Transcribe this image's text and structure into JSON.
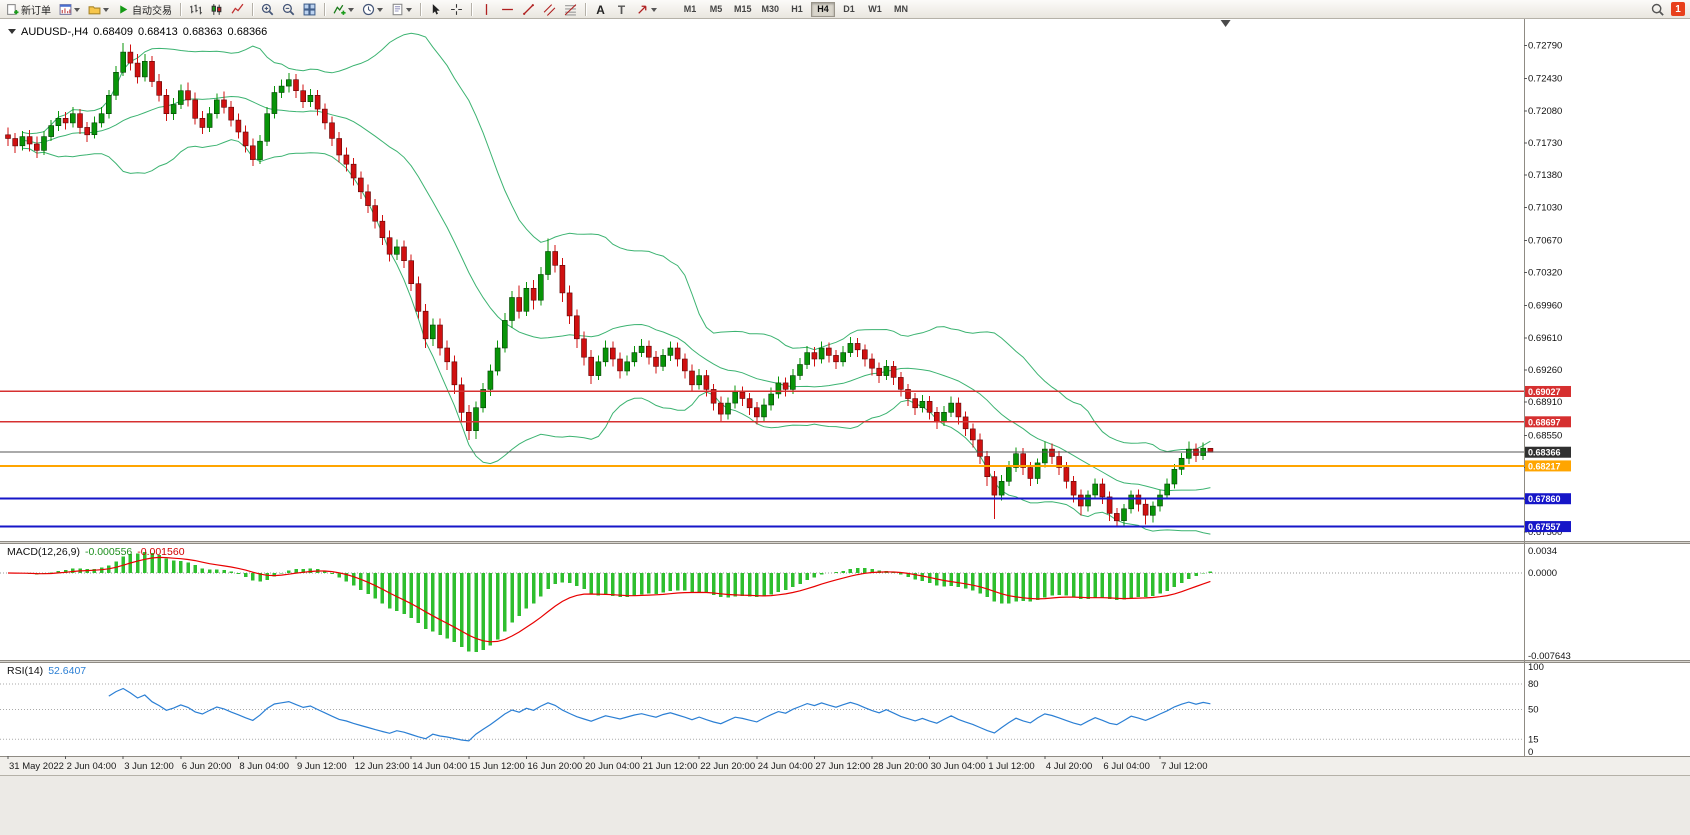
{
  "toolbar": {
    "groups": [
      {
        "items": [
          {
            "name": "new-order",
            "icon": "new-order",
            "label": "新订单"
          },
          {
            "name": "new-chart",
            "icon": "chart-window",
            "dropdown": true
          },
          {
            "name": "profiles",
            "icon": "profiles",
            "dropdown": true
          },
          {
            "name": "auto-trading",
            "icon": "play",
            "label": "自动交易"
          }
        ]
      },
      {
        "items": [
          {
            "name": "bars-mode",
            "icon": "bars"
          },
          {
            "name": "candles-mode",
            "icon": "candles"
          },
          {
            "name": "line-mode",
            "icon": "line-chart"
          }
        ]
      },
      {
        "items": [
          {
            "name": "zoom-in",
            "icon": "zoom-in"
          },
          {
            "name": "zoom-out",
            "icon": "zoom-out"
          },
          {
            "name": "tile-windows",
            "icon": "tile"
          }
        ]
      },
      {
        "items": [
          {
            "name": "indicators",
            "icon": "indicators",
            "dropdown": true
          },
          {
            "name": "periods",
            "icon": "clock",
            "dropdown": true
          },
          {
            "name": "templates",
            "icon": "template",
            "dropdown": true
          }
        ]
      },
      {
        "items": [
          {
            "name": "cursor",
            "icon": "cursor"
          },
          {
            "name": "crosshair",
            "icon": "crosshair"
          }
        ]
      },
      {
        "items": [
          {
            "name": "vertical-line",
            "icon": "vline"
          },
          {
            "name": "horizontal-line",
            "icon": "hline"
          },
          {
            "name": "trendline",
            "icon": "trendline"
          },
          {
            "name": "equidistant-channel",
            "icon": "channel"
          },
          {
            "name": "fibonacci",
            "icon": "fibo"
          }
        ]
      },
      {
        "items": [
          {
            "name": "text",
            "icon": "text-a"
          },
          {
            "name": "text-label",
            "icon": "text-t"
          },
          {
            "name": "arrows",
            "icon": "arrow",
            "dropdown": true
          }
        ]
      }
    ],
    "timeframes": [
      "M1",
      "M5",
      "M15",
      "M30",
      "H1",
      "H4",
      "D1",
      "W1",
      "MN"
    ],
    "active_timeframe": "H4",
    "notification_count": "1"
  },
  "chart_data": {
    "type": "candlestick",
    "symbol": "AUDUSD",
    "timeframe": "H4",
    "title": {
      "symbol": "AUDUSD-,H4",
      "open": "0.68409",
      "high": "0.68413",
      "low": "0.68363",
      "close": "0.68366"
    },
    "price_range": [
      0.674,
      0.7308
    ],
    "price_axis": {
      "ticks": [
        "0.72790",
        "0.72430",
        "0.72080",
        "0.71730",
        "0.71380",
        "0.71030",
        "0.70670",
        "0.70320",
        "0.69960",
        "0.69610",
        "0.69260",
        "0.68910",
        "0.68550",
        "0.68200",
        "0.67850",
        "0.67500"
      ]
    },
    "time_axis": {
      "labels": [
        "31 May 2022",
        "2 Jun 04:00",
        "3 Jun 12:00",
        "6 Jun 20:00",
        "8 Jun 04:00",
        "9 Jun 12:00",
        "12 Jun 23:00",
        "14 Jun 04:00",
        "15 Jun 12:00",
        "16 Jun 20:00",
        "20 Jun 04:00",
        "21 Jun 12:00",
        "22 Jun 20:00",
        "24 Jun 04:00",
        "27 Jun 12:00",
        "28 Jun 20:00",
        "30 Jun 04:00",
        "1 Jul 12:00",
        "4 Jul 20:00",
        "6 Jul 04:00",
        "7 Jul 12:00"
      ]
    },
    "candle_colors": {
      "bull": "#089408",
      "bear": "#d01010"
    },
    "overlays": {
      "bollinger": {
        "period": 20,
        "deviation": 2,
        "color": "#3CB371"
      }
    },
    "hlines": [
      {
        "price": 0.69027,
        "label": "0.69027",
        "color": "#d63030",
        "width": 1.5
      },
      {
        "price": 0.68697,
        "label": "0.68697",
        "color": "#d63030",
        "width": 1.5
      },
      {
        "price": 0.68366,
        "label": "0.68366",
        "color": "#555555",
        "badge": "#303030",
        "width": 1
      },
      {
        "price": 0.68217,
        "label": "0.68217",
        "color": "#ffa500",
        "width": 2
      },
      {
        "price": 0.6786,
        "label": "0.67860",
        "color": "#1616c8",
        "width": 2
      },
      {
        "price": 0.67557,
        "label": "0.67557",
        "color": "#1616c8",
        "width": 2
      }
    ],
    "indicators": {
      "macd": {
        "name": "MACD(12,26,9)",
        "value": "-0.000556",
        "signal_value": "-0.001560",
        "fast": 12,
        "slow": 26,
        "signal": 9,
        "scale_top": "0.0034",
        "scale_zero": "0.0000",
        "scale_bottom": "-0.007643",
        "hist_color": "#2EBE2E",
        "signal_color": "#e80000"
      },
      "rsi": {
        "name": "RSI(14)",
        "value": "52.6407",
        "period": 14,
        "levels": [
          80,
          50,
          15
        ],
        "scale_labels": [
          "100",
          "80",
          "50",
          "15",
          "0"
        ],
        "color": "#2b7fd4"
      }
    },
    "candles": [
      [
        0.7182,
        0.719,
        0.717,
        0.7178
      ],
      [
        0.7178,
        0.7184,
        0.7162,
        0.717
      ],
      [
        0.717,
        0.7186,
        0.7165,
        0.718
      ],
      [
        0.718,
        0.7187,
        0.7164,
        0.7172
      ],
      [
        0.7172,
        0.718,
        0.7157,
        0.7165
      ],
      [
        0.7165,
        0.7186,
        0.716,
        0.718
      ],
      [
        0.718,
        0.7198,
        0.7175,
        0.7192
      ],
      [
        0.7192,
        0.7208,
        0.7186,
        0.72
      ],
      [
        0.72,
        0.7207,
        0.7188,
        0.7195
      ],
      [
        0.7195,
        0.7212,
        0.719,
        0.7205
      ],
      [
        0.7205,
        0.721,
        0.7183,
        0.719
      ],
      [
        0.719,
        0.7196,
        0.7174,
        0.7182
      ],
      [
        0.7182,
        0.7202,
        0.7178,
        0.7195
      ],
      [
        0.7195,
        0.7212,
        0.719,
        0.7205
      ],
      [
        0.7205,
        0.7231,
        0.72,
        0.7225
      ],
      [
        0.7225,
        0.7257,
        0.722,
        0.725
      ],
      [
        0.725,
        0.7282,
        0.7246,
        0.7272
      ],
      [
        0.7272,
        0.728,
        0.7252,
        0.726
      ],
      [
        0.726,
        0.727,
        0.7238,
        0.7245
      ],
      [
        0.7245,
        0.727,
        0.724,
        0.7262
      ],
      [
        0.7262,
        0.7268,
        0.7234,
        0.724
      ],
      [
        0.724,
        0.7248,
        0.7218,
        0.7225
      ],
      [
        0.7225,
        0.7232,
        0.7197,
        0.7205
      ],
      [
        0.7205,
        0.7222,
        0.7198,
        0.7215
      ],
      [
        0.7215,
        0.7237,
        0.721,
        0.723
      ],
      [
        0.723,
        0.7239,
        0.7213,
        0.722
      ],
      [
        0.722,
        0.7228,
        0.7193,
        0.72
      ],
      [
        0.72,
        0.7208,
        0.7183,
        0.719
      ],
      [
        0.719,
        0.7212,
        0.7185,
        0.7205
      ],
      [
        0.7205,
        0.7227,
        0.72,
        0.722
      ],
      [
        0.722,
        0.7229,
        0.7205,
        0.7212
      ],
      [
        0.7212,
        0.7219,
        0.7191,
        0.7198
      ],
      [
        0.7198,
        0.7205,
        0.7178,
        0.7185
      ],
      [
        0.7185,
        0.7192,
        0.7163,
        0.717
      ],
      [
        0.717,
        0.7178,
        0.7148,
        0.7155
      ],
      [
        0.7155,
        0.7182,
        0.715,
        0.7175
      ],
      [
        0.7175,
        0.7212,
        0.717,
        0.7205
      ],
      [
        0.7205,
        0.7235,
        0.72,
        0.7228
      ],
      [
        0.7228,
        0.7242,
        0.7222,
        0.7235
      ],
      [
        0.7235,
        0.7249,
        0.7228,
        0.7242
      ],
      [
        0.7242,
        0.7248,
        0.7222,
        0.723
      ],
      [
        0.723,
        0.7237,
        0.7211,
        0.7218
      ],
      [
        0.7218,
        0.7232,
        0.7212,
        0.7225
      ],
      [
        0.7225,
        0.7231,
        0.7203,
        0.721
      ],
      [
        0.721,
        0.7216,
        0.7188,
        0.7195
      ],
      [
        0.7195,
        0.7202,
        0.717,
        0.7178
      ],
      [
        0.7178,
        0.7185,
        0.7152,
        0.716
      ],
      [
        0.716,
        0.7168,
        0.7142,
        0.715
      ],
      [
        0.715,
        0.7157,
        0.7127,
        0.7135
      ],
      [
        0.7135,
        0.7142,
        0.7112,
        0.712
      ],
      [
        0.712,
        0.7128,
        0.7097,
        0.7105
      ],
      [
        0.7105,
        0.7112,
        0.708,
        0.7088
      ],
      [
        0.7088,
        0.7095,
        0.7062,
        0.707
      ],
      [
        0.707,
        0.7078,
        0.7044,
        0.7052
      ],
      [
        0.7052,
        0.7068,
        0.7046,
        0.706
      ],
      [
        0.706,
        0.7067,
        0.7037,
        0.7045
      ],
      [
        0.7045,
        0.7052,
        0.7012,
        0.702
      ],
      [
        0.702,
        0.7028,
        0.6982,
        0.699
      ],
      [
        0.699,
        0.6998,
        0.695,
        0.696
      ],
      [
        0.696,
        0.6982,
        0.6952,
        0.6975
      ],
      [
        0.6975,
        0.6982,
        0.6942,
        0.695
      ],
      [
        0.695,
        0.6958,
        0.6926,
        0.6935
      ],
      [
        0.6935,
        0.6942,
        0.69,
        0.691
      ],
      [
        0.691,
        0.6918,
        0.687,
        0.688
      ],
      [
        0.688,
        0.6888,
        0.685,
        0.686
      ],
      [
        0.686,
        0.6892,
        0.6851,
        0.6885
      ],
      [
        0.6885,
        0.6912,
        0.688,
        0.6905
      ],
      [
        0.6905,
        0.6932,
        0.6898,
        0.6925
      ],
      [
        0.6925,
        0.6958,
        0.692,
        0.695
      ],
      [
        0.695,
        0.6988,
        0.6945,
        0.698
      ],
      [
        0.698,
        0.7012,
        0.6972,
        0.7005
      ],
      [
        0.7005,
        0.7018,
        0.6982,
        0.699
      ],
      [
        0.699,
        0.7022,
        0.6985,
        0.7015
      ],
      [
        0.7015,
        0.7024,
        0.6992,
        0.7002
      ],
      [
        0.7002,
        0.7038,
        0.6996,
        0.703
      ],
      [
        0.703,
        0.7069,
        0.7024,
        0.7055
      ],
      [
        0.7055,
        0.7062,
        0.7032,
        0.704
      ],
      [
        0.704,
        0.7048,
        0.7,
        0.701
      ],
      [
        0.701,
        0.7018,
        0.6976,
        0.6985
      ],
      [
        0.6985,
        0.6992,
        0.695,
        0.696
      ],
      [
        0.696,
        0.6968,
        0.6931,
        0.694
      ],
      [
        0.694,
        0.6948,
        0.6911,
        0.692
      ],
      [
        0.692,
        0.6942,
        0.6915,
        0.6935
      ],
      [
        0.6935,
        0.6958,
        0.693,
        0.695
      ],
      [
        0.695,
        0.6957,
        0.693,
        0.6938
      ],
      [
        0.6938,
        0.6945,
        0.6917,
        0.6925
      ],
      [
        0.6925,
        0.6942,
        0.692,
        0.6935
      ],
      [
        0.6935,
        0.6952,
        0.693,
        0.6945
      ],
      [
        0.6945,
        0.696,
        0.694,
        0.6952
      ],
      [
        0.6952,
        0.6958,
        0.6932,
        0.694
      ],
      [
        0.694,
        0.6947,
        0.6922,
        0.693
      ],
      [
        0.693,
        0.6949,
        0.6925,
        0.6942
      ],
      [
        0.6942,
        0.6957,
        0.6936,
        0.695
      ],
      [
        0.695,
        0.6956,
        0.693,
        0.6938
      ],
      [
        0.6938,
        0.6944,
        0.6917,
        0.6925
      ],
      [
        0.6925,
        0.6932,
        0.6902,
        0.691
      ],
      [
        0.691,
        0.6927,
        0.6905,
        0.692
      ],
      [
        0.692,
        0.6926,
        0.6897,
        0.6905
      ],
      [
        0.6905,
        0.6911,
        0.6882,
        0.689
      ],
      [
        0.689,
        0.6897,
        0.687,
        0.6878
      ],
      [
        0.6878,
        0.6896,
        0.6872,
        0.689
      ],
      [
        0.689,
        0.6909,
        0.6884,
        0.6902
      ],
      [
        0.6902,
        0.6908,
        0.6887,
        0.6895
      ],
      [
        0.6895,
        0.6901,
        0.6877,
        0.6885
      ],
      [
        0.6885,
        0.6891,
        0.6867,
        0.6875
      ],
      [
        0.6875,
        0.6895,
        0.687,
        0.6888
      ],
      [
        0.6888,
        0.6907,
        0.6882,
        0.69
      ],
      [
        0.69,
        0.6919,
        0.6895,
        0.6912
      ],
      [
        0.6912,
        0.6918,
        0.6897,
        0.6905
      ],
      [
        0.6905,
        0.6927,
        0.69,
        0.692
      ],
      [
        0.692,
        0.6939,
        0.6915,
        0.6932
      ],
      [
        0.6932,
        0.6952,
        0.6927,
        0.6945
      ],
      [
        0.6945,
        0.6951,
        0.693,
        0.6938
      ],
      [
        0.6938,
        0.6957,
        0.6933,
        0.695
      ],
      [
        0.695,
        0.6956,
        0.6934,
        0.6942
      ],
      [
        0.6942,
        0.6948,
        0.6927,
        0.6935
      ],
      [
        0.6935,
        0.6952,
        0.693,
        0.6945
      ],
      [
        0.6945,
        0.6962,
        0.694,
        0.6955
      ],
      [
        0.6955,
        0.6961,
        0.694,
        0.6948
      ],
      [
        0.6948,
        0.6954,
        0.693,
        0.6938
      ],
      [
        0.6938,
        0.6944,
        0.692,
        0.6928
      ],
      [
        0.6928,
        0.6934,
        0.6912,
        0.692
      ],
      [
        0.692,
        0.6937,
        0.6915,
        0.693
      ],
      [
        0.693,
        0.6936,
        0.691,
        0.6918
      ],
      [
        0.6918,
        0.6924,
        0.6897,
        0.6905
      ],
      [
        0.6905,
        0.6911,
        0.6887,
        0.6895
      ],
      [
        0.6895,
        0.6901,
        0.6877,
        0.6885
      ],
      [
        0.6885,
        0.6899,
        0.688,
        0.6892
      ],
      [
        0.6892,
        0.6898,
        0.6872,
        0.688
      ],
      [
        0.688,
        0.6886,
        0.6862,
        0.687
      ],
      [
        0.687,
        0.6887,
        0.6865,
        0.688
      ],
      [
        0.688,
        0.6897,
        0.6875,
        0.689
      ],
      [
        0.689,
        0.6896,
        0.6867,
        0.6875
      ],
      [
        0.6875,
        0.6881,
        0.6854,
        0.6862
      ],
      [
        0.6862,
        0.6868,
        0.6842,
        0.685
      ],
      [
        0.685,
        0.6857,
        0.6824,
        0.6832
      ],
      [
        0.6832,
        0.6838,
        0.68,
        0.681
      ],
      [
        0.681,
        0.6816,
        0.6764,
        0.679
      ],
      [
        0.679,
        0.6812,
        0.6784,
        0.6805
      ],
      [
        0.6805,
        0.6827,
        0.68,
        0.682
      ],
      [
        0.682,
        0.6842,
        0.6815,
        0.6835
      ],
      [
        0.6835,
        0.6841,
        0.6812,
        0.682
      ],
      [
        0.682,
        0.6826,
        0.68,
        0.6808
      ],
      [
        0.6808,
        0.683,
        0.6802,
        0.6825
      ],
      [
        0.6825,
        0.6848,
        0.682,
        0.684
      ],
      [
        0.684,
        0.6846,
        0.6824,
        0.6832
      ],
      [
        0.6832,
        0.6838,
        0.6812,
        0.682
      ],
      [
        0.682,
        0.6826,
        0.6797,
        0.6805
      ],
      [
        0.6805,
        0.6811,
        0.6782,
        0.679
      ],
      [
        0.679,
        0.6796,
        0.6768,
        0.6778
      ],
      [
        0.6778,
        0.6795,
        0.6772,
        0.679
      ],
      [
        0.679,
        0.6808,
        0.6785,
        0.6802
      ],
      [
        0.6802,
        0.6808,
        0.678,
        0.6788
      ],
      [
        0.6788,
        0.6794,
        0.6762,
        0.677
      ],
      [
        0.677,
        0.6776,
        0.6757,
        0.6762
      ],
      [
        0.6762,
        0.678,
        0.6757,
        0.6775
      ],
      [
        0.6775,
        0.6795,
        0.677,
        0.679
      ],
      [
        0.679,
        0.6796,
        0.6772,
        0.678
      ],
      [
        0.678,
        0.6786,
        0.6758,
        0.6768
      ],
      [
        0.6768,
        0.6783,
        0.676,
        0.6778
      ],
      [
        0.6778,
        0.6796,
        0.6772,
        0.679
      ],
      [
        0.679,
        0.6808,
        0.6785,
        0.6802
      ],
      [
        0.6802,
        0.6824,
        0.6797,
        0.6818
      ],
      [
        0.6818,
        0.6836,
        0.6812,
        0.683
      ],
      [
        0.683,
        0.6848,
        0.6824,
        0.684
      ],
      [
        0.684,
        0.6846,
        0.6826,
        0.6833
      ],
      [
        0.6833,
        0.6847,
        0.6828,
        0.6841
      ],
      [
        0.68409,
        0.68413,
        0.68363,
        0.68366
      ]
    ]
  }
}
